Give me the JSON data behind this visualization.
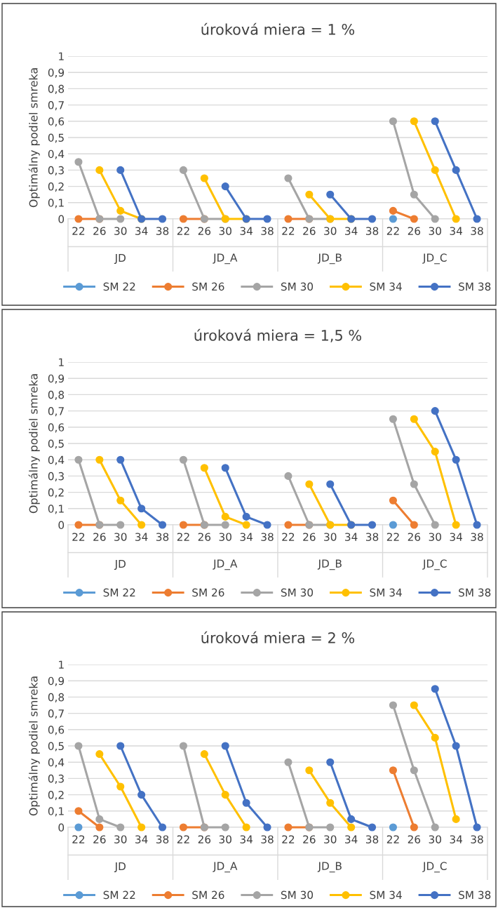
{
  "chart_data": [
    {
      "type": "line",
      "title": "úroková miera = 1 %",
      "ylabel": "Optimálny podiel smreka",
      "categories": [
        "22",
        "26",
        "30",
        "34",
        "38",
        "22",
        "26",
        "30",
        "34",
        "38",
        "22",
        "26",
        "30",
        "34",
        "38",
        "22",
        "26",
        "30",
        "34",
        "38"
      ],
      "annotations": [
        "JD",
        "JD_A",
        "JD_B",
        "JD_C"
      ],
      "ylim": [
        0,
        1
      ],
      "yticks": [
        0,
        {
          "value": 0.1,
          "label": "0,1"
        },
        {
          "value": 0.2,
          "label": "0,2"
        },
        {
          "value": 0.3,
          "label": "0,3"
        },
        {
          "value": 0.4,
          "label": "0,4"
        },
        {
          "value": 0.5,
          "label": "0,5"
        },
        {
          "value": 0.6,
          "label": "0,6"
        },
        {
          "value": 0.7,
          "label": "0,7"
        },
        {
          "value": 0.8,
          "label": "0,8"
        },
        {
          "value": 0.9,
          "label": "0,9"
        },
        1
      ],
      "grid": "y",
      "legend": "bottom",
      "marker": "circle",
      "line_style": "solid",
      "series": [
        {
          "name": "SM 22",
          "color": "#5b9bd5",
          "values": [
            null,
            null,
            null,
            null,
            null,
            null,
            null,
            null,
            null,
            null,
            null,
            null,
            null,
            null,
            null,
            0,
            null,
            null,
            null,
            null
          ]
        },
        {
          "name": "SM 26",
          "color": "#ed7d31",
          "values": [
            0,
            0,
            null,
            null,
            null,
            0,
            0,
            null,
            null,
            null,
            0,
            0,
            null,
            null,
            null,
            0.05,
            0,
            null,
            null,
            null
          ]
        },
        {
          "name": "SM 30",
          "color": "#a5a5a5",
          "values": [
            0.35,
            0,
            0,
            null,
            null,
            0.3,
            0,
            0,
            null,
            null,
            0.25,
            0,
            0,
            null,
            null,
            0.6,
            0.15,
            0,
            null,
            null
          ]
        },
        {
          "name": "SM 34",
          "color": "#ffc000",
          "values": [
            null,
            0.3,
            0.05,
            0,
            null,
            null,
            0.25,
            0,
            0,
            null,
            null,
            0.15,
            0,
            0,
            null,
            null,
            0.6,
            0.3,
            0,
            null
          ]
        },
        {
          "name": "SM 38",
          "color": "#4472c4",
          "values": [
            null,
            null,
            0.3,
            0,
            0,
            null,
            null,
            0.2,
            0,
            0,
            null,
            null,
            0.15,
            0,
            0,
            null,
            null,
            0.6,
            0.3,
            0
          ]
        }
      ]
    },
    {
      "type": "line",
      "title": "úroková miera = 1,5 %",
      "ylabel": "Optimálny podiel smreka",
      "categories": [
        "22",
        "26",
        "30",
        "34",
        "38",
        "22",
        "26",
        "30",
        "34",
        "38",
        "22",
        "26",
        "30",
        "34",
        "38",
        "22",
        "26",
        "30",
        "34",
        "38"
      ],
      "annotations": [
        "JD",
        "JD_A",
        "JD_B",
        "JD_C"
      ],
      "ylim": [
        0,
        1
      ],
      "yticks": [
        0,
        {
          "value": 0.1,
          "label": "0,1"
        },
        {
          "value": 0.2,
          "label": "0,2"
        },
        {
          "value": 0.3,
          "label": "0,3"
        },
        {
          "value": 0.4,
          "label": "0,4"
        },
        {
          "value": 0.5,
          "label": "0,5"
        },
        {
          "value": 0.6,
          "label": "0,6"
        },
        {
          "value": 0.7,
          "label": "0,7"
        },
        {
          "value": 0.8,
          "label": "0,8"
        },
        {
          "value": 0.9,
          "label": "0,9"
        },
        1
      ],
      "grid": "y",
      "legend": "bottom",
      "marker": "circle",
      "line_style": "solid",
      "series": [
        {
          "name": "SM 22",
          "color": "#5b9bd5",
          "values": [
            null,
            null,
            null,
            null,
            null,
            null,
            null,
            null,
            null,
            null,
            null,
            null,
            null,
            null,
            null,
            0,
            null,
            null,
            null,
            null
          ]
        },
        {
          "name": "SM 26",
          "color": "#ed7d31",
          "values": [
            0,
            0,
            null,
            null,
            null,
            0,
            0,
            null,
            null,
            null,
            0,
            0,
            null,
            null,
            null,
            0.15,
            0,
            null,
            null,
            null
          ]
        },
        {
          "name": "SM 30",
          "color": "#a5a5a5",
          "values": [
            0.4,
            0,
            0,
            null,
            null,
            0.4,
            0,
            0,
            null,
            null,
            0.3,
            0,
            0,
            null,
            null,
            0.65,
            0.25,
            0,
            null,
            null
          ]
        },
        {
          "name": "SM 34",
          "color": "#ffc000",
          "values": [
            null,
            0.4,
            0.15,
            0,
            null,
            null,
            0.35,
            0.05,
            0,
            null,
            null,
            0.25,
            0,
            0,
            null,
            null,
            0.65,
            0.45,
            0,
            null
          ]
        },
        {
          "name": "SM 38",
          "color": "#4472c4",
          "values": [
            null,
            null,
            0.4,
            0.1,
            0,
            null,
            null,
            0.35,
            0.05,
            0,
            null,
            null,
            0.25,
            0,
            0,
            null,
            null,
            0.7,
            0.4,
            0
          ]
        }
      ]
    },
    {
      "type": "line",
      "title": "úroková miera = 2 %",
      "ylabel": "Optimálny podiel smreka",
      "categories": [
        "22",
        "26",
        "30",
        "34",
        "38",
        "22",
        "26",
        "30",
        "34",
        "38",
        "22",
        "26",
        "30",
        "34",
        "38",
        "22",
        "26",
        "30",
        "34",
        "38"
      ],
      "annotations": [
        "JD",
        "JD_A",
        "JD_B",
        "JD_C"
      ],
      "ylim": [
        0,
        1
      ],
      "yticks": [
        0,
        {
          "value": 0.1,
          "label": "0,1"
        },
        {
          "value": 0.2,
          "label": "0,2"
        },
        {
          "value": 0.3,
          "label": "0,3"
        },
        {
          "value": 0.4,
          "label": "0,4"
        },
        {
          "value": 0.5,
          "label": "0,5"
        },
        {
          "value": 0.6,
          "label": "0,6"
        },
        {
          "value": 0.7,
          "label": "0,7"
        },
        {
          "value": 0.8,
          "label": "0,8"
        },
        {
          "value": 0.9,
          "label": "0,9"
        },
        1
      ],
      "grid": "y",
      "legend": "bottom",
      "marker": "circle",
      "line_style": "solid",
      "series": [
        {
          "name": "SM 22",
          "color": "#5b9bd5",
          "values": [
            0,
            null,
            null,
            null,
            null,
            null,
            null,
            null,
            null,
            null,
            null,
            null,
            null,
            null,
            null,
            0,
            null,
            null,
            null,
            null
          ]
        },
        {
          "name": "SM 26",
          "color": "#ed7d31",
          "values": [
            0.1,
            0,
            null,
            null,
            null,
            0,
            0,
            null,
            null,
            null,
            0,
            0,
            null,
            null,
            null,
            0.35,
            0,
            null,
            null,
            null
          ]
        },
        {
          "name": "SM 30",
          "color": "#a5a5a5",
          "values": [
            0.5,
            0.05,
            0,
            null,
            null,
            0.5,
            0,
            0,
            null,
            null,
            0.4,
            0,
            0,
            null,
            null,
            0.75,
            0.35,
            0,
            null,
            null
          ]
        },
        {
          "name": "SM 34",
          "color": "#ffc000",
          "values": [
            null,
            0.45,
            0.25,
            0,
            null,
            null,
            0.45,
            0.2,
            0,
            null,
            null,
            0.35,
            0.15,
            0,
            null,
            null,
            0.75,
            0.55,
            0.05,
            null
          ]
        },
        {
          "name": "SM 38",
          "color": "#4472c4",
          "values": [
            null,
            null,
            0.5,
            0.2,
            0,
            null,
            null,
            0.5,
            0.15,
            0,
            null,
            null,
            0.4,
            0.05,
            0,
            null,
            null,
            0.85,
            0.5,
            0
          ]
        }
      ]
    }
  ]
}
